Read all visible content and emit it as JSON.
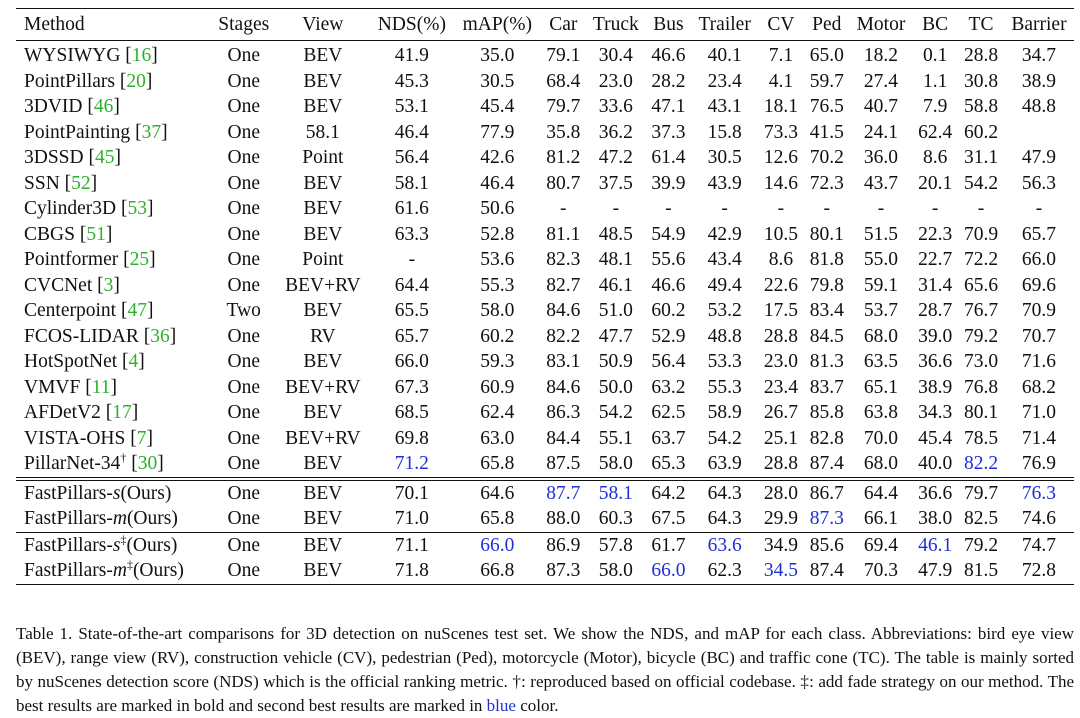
{
  "table": {
    "headers": [
      "Method",
      "Stages",
      "View",
      "NDS(%)",
      "mAP(%)",
      "Car",
      "Truck",
      "Bus",
      "Trailer",
      "CV",
      "Ped",
      "Motor",
      "BC",
      "TC",
      "Barrier"
    ],
    "rows": [
      {
        "name": "WYSIWYG",
        "ref": "16",
        "stages": "One",
        "view": "BEV",
        "values": [
          "41.9",
          "35.0",
          "79.1",
          "30.4",
          "46.6",
          "40.1",
          "7.1",
          "65.0",
          "18.2",
          "0.1",
          "28.8",
          "34.7"
        ]
      },
      {
        "name": "PointPillars",
        "ref": "20",
        "stages": "One",
        "view": "BEV",
        "values": [
          "45.3",
          "30.5",
          "68.4",
          "23.0",
          "28.2",
          "23.4",
          "4.1",
          "59.7",
          "27.4",
          "1.1",
          "30.8",
          "38.9"
        ]
      },
      {
        "name": "3DVID",
        "ref": "46",
        "stages": "One",
        "view": "BEV",
        "values": [
          "53.1",
          "45.4",
          "79.7",
          "33.6",
          "47.1",
          "43.1",
          "18.1",
          "76.5",
          "40.7",
          "7.9",
          "58.8",
          "48.8"
        ]
      },
      {
        "name": "PointPainting",
        "ref": "37",
        "stages": "One",
        "view": "58.1",
        "values": [
          "46.4",
          "77.9",
          "35.8",
          "36.2",
          "37.3",
          "15.8",
          "73.3",
          "41.5",
          "24.1",
          "62.4",
          "60.2",
          ""
        ]
      },
      {
        "name": "3DSSD",
        "ref": "45",
        "stages": "One",
        "view": "Point",
        "values": [
          "56.4",
          "42.6",
          "81.2",
          "47.2",
          "61.4",
          "30.5",
          "12.6",
          "70.2",
          "36.0",
          "8.6",
          "31.1",
          "47.9"
        ]
      },
      {
        "name": "SSN",
        "ref": "52",
        "stages": "One",
        "view": "BEV",
        "values": [
          "58.1",
          "46.4",
          "80.7",
          "37.5",
          "39.9",
          "43.9",
          "14.6",
          "72.3",
          "43.7",
          "20.1",
          "54.2",
          "56.3"
        ]
      },
      {
        "name": "Cylinder3D",
        "ref": "53",
        "stages": "One",
        "view": "BEV",
        "values": [
          "61.6",
          "50.6",
          "-",
          "-",
          "-",
          "-",
          "-",
          "-",
          "-",
          "-",
          "-",
          "-"
        ]
      },
      {
        "name": "CBGS",
        "ref": "51",
        "stages": "One",
        "view": "BEV",
        "values": [
          "63.3",
          "52.8",
          "81.1",
          "48.5",
          "54.9",
          "42.9",
          "10.5",
          "80.1",
          "51.5",
          "22.3",
          "70.9",
          "65.7"
        ]
      },
      {
        "name": "Pointformer",
        "ref": "25",
        "stages": "One",
        "view": "Point",
        "values": [
          "-",
          "53.6",
          "82.3",
          "48.1",
          "55.6",
          "43.4",
          "8.6",
          "81.8",
          "55.0",
          "22.7",
          "72.2",
          "66.0"
        ]
      },
      {
        "name": "CVCNet",
        "ref": "3",
        "stages": "One",
        "view": "BEV+RV",
        "values": [
          "64.4",
          "55.3",
          "82.7",
          "46.1",
          "46.6",
          "49.4",
          "22.6",
          "79.8",
          "59.1",
          "31.4",
          "65.6",
          "69.6"
        ]
      },
      {
        "name": "Centerpoint",
        "ref": "47",
        "stages": "Two",
        "view": "BEV",
        "values": [
          "65.5",
          "58.0",
          "84.6",
          "51.0",
          "60.2",
          "53.2",
          "17.5",
          "83.4",
          "53.7",
          "28.7",
          "76.7",
          "70.9"
        ]
      },
      {
        "name": "FCOS-LIDAR",
        "ref": "36",
        "stages": "One",
        "view": "RV",
        "values": [
          "65.7",
          "60.2",
          "82.2",
          "47.7",
          "52.9",
          "48.8",
          "28.8",
          "84.5",
          "68.0",
          "39.0",
          "79.2",
          "70.7"
        ]
      },
      {
        "name": "HotSpotNet",
        "ref": "4",
        "stages": "One",
        "view": "BEV",
        "values": [
          "66.0",
          "59.3",
          "83.1",
          "50.9",
          "56.4",
          "53.3",
          "23.0",
          "81.3",
          "63.5",
          "36.6",
          "73.0",
          "71.6"
        ]
      },
      {
        "name": "VMVF",
        "ref": "11",
        "stages": "One",
        "view": "BEV+RV",
        "values": [
          "67.3",
          "60.9",
          "84.6",
          "50.0",
          "63.2",
          "55.3",
          "23.4",
          "83.7",
          "65.1",
          "38.9",
          "76.8",
          "68.2"
        ]
      },
      {
        "name": "AFDetV2",
        "ref": "17",
        "stages": "One",
        "view": "BEV",
        "values": [
          "68.5",
          "62.4",
          "86.3",
          "54.2",
          "62.5",
          "58.9",
          "26.7",
          "85.8",
          "63.8",
          "34.3",
          "80.1",
          "71.0"
        ]
      },
      {
        "name": "VISTA-OHS",
        "ref": "7",
        "stages": "One",
        "view": "BEV+RV",
        "values": [
          "69.8",
          "63.0",
          "84.4",
          "55.1",
          "63.7",
          "54.2",
          "25.1",
          "82.8",
          "70.0",
          "45.4",
          "78.5",
          "71.4"
        ]
      },
      {
        "name": "PillarNet-34",
        "sup": "†",
        "ref": "30",
        "stages": "One",
        "view": "BEV",
        "values": [
          "71.2",
          "65.8",
          "87.5",
          "58.0",
          "65.3",
          "63.9",
          "28.8",
          "87.4",
          "68.0",
          "40.0",
          "82.2",
          "76.9"
        ]
      },
      {
        "name": "FastPillars-",
        "variant": "s",
        "suffix": "(Ours)",
        "stages": "One",
        "view": "BEV",
        "values": [
          "70.1",
          "64.6",
          "87.7",
          "58.1",
          "64.2",
          "64.3",
          "28.0",
          "86.7",
          "64.4",
          "36.6",
          "79.7",
          "76.3"
        ]
      },
      {
        "name": "FastPillars-",
        "variant": "m",
        "suffix": "(Ours)",
        "stages": "One",
        "view": "BEV",
        "values": [
          "71.0",
          "65.8",
          "88.0",
          "60.3",
          "67.5",
          "64.3",
          "29.9",
          "87.3",
          "66.1",
          "38.0",
          "82.5",
          "74.6"
        ]
      },
      {
        "name": "FastPillars-",
        "variant": "s",
        "sup": "‡",
        "suffix": "(Ours)",
        "stages": "One",
        "view": "BEV",
        "values": [
          "71.1",
          "66.0",
          "86.9",
          "57.8",
          "61.7",
          "63.6",
          "34.9",
          "85.6",
          "69.4",
          "46.1",
          "79.2",
          "74.7"
        ]
      },
      {
        "name": "FastPillars-",
        "variant": "m",
        "sup": "‡",
        "suffix": "(Ours)",
        "stages": "One",
        "view": "BEV",
        "values": [
          "71.8",
          "66.8",
          "87.3",
          "58.0",
          "66.0",
          "62.3",
          "34.5",
          "87.4",
          "70.3",
          "47.9",
          "81.5",
          "72.8"
        ]
      }
    ],
    "bold_cells": [
      [
        15,
        6
      ],
      [
        16,
        11
      ],
      [
        18,
        2
      ],
      [
        18,
        3
      ],
      [
        18,
        4
      ],
      [
        18,
        5
      ],
      [
        18,
        10
      ],
      [
        19,
        4
      ],
      [
        20,
        0
      ],
      [
        20,
        1
      ],
      [
        20,
        7
      ],
      [
        20,
        8
      ],
      [
        20,
        9
      ]
    ],
    "blue_cells": [
      [
        16,
        0
      ],
      [
        16,
        10
      ],
      [
        17,
        2
      ],
      [
        17,
        3
      ],
      [
        17,
        11
      ],
      [
        18,
        7
      ],
      [
        19,
        1
      ],
      [
        19,
        5
      ],
      [
        19,
        9
      ],
      [
        20,
        4
      ],
      [
        20,
        6
      ]
    ]
  },
  "caption": {
    "lead": "Table 1. State-of-the-art comparisons for 3D detection on nuScenes test set. We show the NDS, and mAP for each class. Abbreviations: bird eye view (BEV), range view (RV), construction vehicle (CV), pedestrian (Ped), motorcycle (Motor), bicycle (BC) and traffic cone (TC). The table is mainly sorted by nuScenes detection score (NDS) which is the official ranking metric. †: reproduced based on official codebase. ‡: add fade strategy on our method. The best results are marked in bold and second best results are marked in",
    "blue_word": "blue",
    "tail": "color."
  },
  "colors": {
    "reference": "#2db12d",
    "second_best": "#1f2fd6",
    "text": "#111111"
  }
}
